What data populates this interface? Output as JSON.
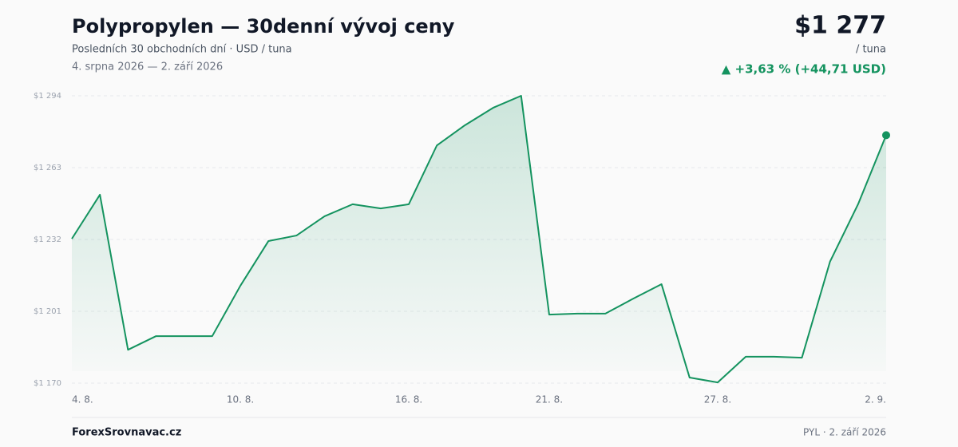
{
  "chart_data": {
    "type": "line",
    "title": "Polypropylen — 30denní vývoj ceny",
    "subtitle": "Posledních 30 obchodních dní · USD / tuna",
    "date_range": "4. srpna 2026 — 2. září 2026",
    "price": "$1 277",
    "price_unit": "/ tuna",
    "change": "▲ +3,63 % (+44,71 USD)",
    "source": "ForexSrovnavac.cz",
    "footer_note": "PYL · 2. září 2026",
    "categories": [
      "4. 8.",
      null,
      null,
      null,
      null,
      null,
      "10. 8.",
      null,
      null,
      null,
      null,
      null,
      "16. 8.",
      null,
      null,
      null,
      null,
      "21. 8.",
      null,
      null,
      null,
      null,
      null,
      "27. 8.",
      null,
      null,
      null,
      null,
      null,
      "2. 9."
    ],
    "values": [
      1232.3,
      1251.3,
      1184.4,
      1190.3,
      1190.3,
      1190.3,
      1212,
      1231.3,
      1233.7,
      1242,
      1247.2,
      1245.4,
      1247.2,
      1272.6,
      1281.3,
      1288.8,
      1294,
      1199.6,
      1200,
      1200,
      1206.5,
      1212.7,
      1172.4,
      1170.3,
      1181.4,
      1181.4,
      1181,
      1222.4,
      1247.2,
      1277
    ],
    "color": "#14935f",
    "ylim": [
      1170,
      1294
    ],
    "yticks": [
      {
        "value": 1170,
        "label": "$1 170"
      },
      {
        "value": 1201,
        "label": "$1 201"
      },
      {
        "value": 1232,
        "label": "$1 232"
      },
      {
        "value": 1263,
        "label": "$1 263"
      },
      {
        "value": 1294,
        "label": "$1 294"
      }
    ],
    "grid": true
  }
}
